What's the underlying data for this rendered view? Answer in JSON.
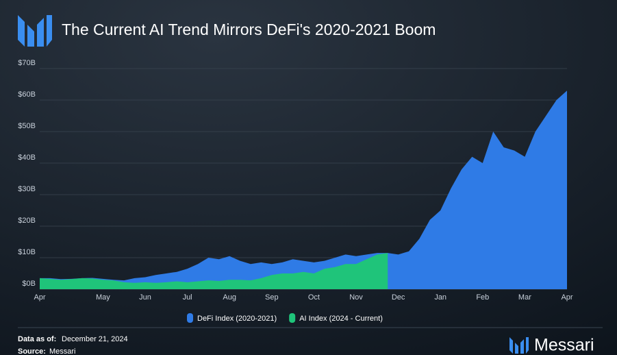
{
  "chart_data": {
    "type": "area",
    "title": "The Current AI Trend Mirrors DeFi's 2020-2021 Boom",
    "categories": [
      "Apr",
      null,
      null,
      null,
      null,
      null,
      "May",
      null,
      null,
      null,
      "Jun",
      null,
      null,
      null,
      "Jul",
      null,
      null,
      null,
      "Aug",
      null,
      null,
      null,
      "Sep",
      null,
      null,
      null,
      "Oct",
      null,
      null,
      null,
      "Nov",
      null,
      null,
      null,
      "Dec",
      null,
      null,
      null,
      "Jan",
      null,
      null,
      null,
      "Feb",
      null,
      null,
      null,
      "Mar",
      null,
      null,
      null,
      "Apr"
    ],
    "series": [
      {
        "name": "DeFi Index (2020-2021)",
        "color": "#2f7be6",
        "values": [
          3.5,
          3.5,
          3.2,
          3.3,
          3.5,
          3.6,
          3.3,
          3.0,
          2.8,
          3.5,
          3.8,
          4.5,
          5.0,
          5.5,
          6.5,
          8,
          10,
          9.5,
          10.5,
          9,
          8,
          8.5,
          8,
          8.5,
          9.5,
          9,
          8.5,
          9,
          10,
          11,
          10.5,
          11,
          11.5,
          11.5,
          11,
          12,
          16,
          22,
          25,
          32,
          38,
          42,
          40,
          50,
          45,
          44,
          42,
          50,
          55,
          60,
          63
        ]
      },
      {
        "name": "AI Index (2024 - Current)",
        "color": "#1fc47a",
        "values": [
          3.5,
          3.3,
          3.0,
          3.2,
          3.5,
          3.4,
          3.0,
          2.8,
          2.2,
          2.0,
          2.2,
          2.0,
          2.2,
          2.5,
          2.2,
          2.5,
          2.8,
          2.6,
          3.0,
          3.0,
          2.8,
          3.5,
          4.5,
          5.0,
          5.0,
          5.5,
          5.0,
          6.5,
          7.0,
          8.0,
          8.0,
          9.5,
          11,
          11.5,
          null,
          null,
          null,
          null,
          null,
          null,
          null,
          null,
          null,
          null,
          null,
          null,
          null,
          null,
          null,
          null,
          null
        ]
      }
    ],
    "ylim": [
      0,
      70
    ],
    "yticks": [
      {
        "value": 0,
        "label": "$0B"
      },
      {
        "value": 10,
        "label": "$10B"
      },
      {
        "value": 20,
        "label": "$20B"
      },
      {
        "value": 30,
        "label": "$30B"
      },
      {
        "value": 40,
        "label": "$40B"
      },
      {
        "value": 50,
        "label": "$50B"
      },
      {
        "value": 60,
        "label": "$60B"
      },
      {
        "value": 70,
        "label": "$70B"
      }
    ],
    "grid": true
  },
  "footer": {
    "data_as_of_label": "Data as of:",
    "data_as_of": "December 21, 2024",
    "source_label": "Source:",
    "source": "Messari",
    "brand": "Messari"
  }
}
